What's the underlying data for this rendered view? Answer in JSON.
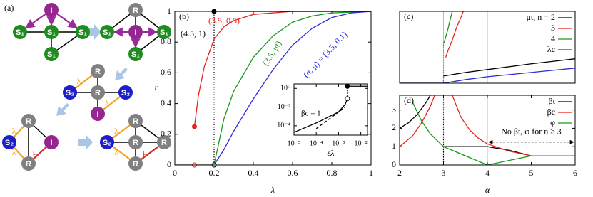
{
  "diagram": {
    "label": "(a)",
    "nodes": [
      "I",
      "S₁",
      "S₁",
      "S₁",
      "S₁",
      "R",
      "S₁",
      "I",
      "S₁",
      "S₁",
      "R",
      "S₂",
      "R",
      "S₂",
      "I",
      "R",
      "S₂",
      "I",
      "R",
      "R",
      "S₂",
      "R",
      "R",
      "R"
    ],
    "edge_labels": [
      "λ",
      "μ"
    ]
  },
  "chart_data": [
    {
      "type": "line",
      "label": "(b)",
      "xlabel": "λ",
      "ylabel": "r",
      "xlim": [
        0,
        1
      ],
      "ylim": [
        0,
        1
      ],
      "xticks": [
        0,
        0.2,
        0.4,
        0.6,
        0.8,
        1
      ],
      "yticks": [
        0,
        0.2,
        0.4,
        0.6,
        0.8,
        1
      ],
      "series": [
        {
          "name": "(3.5, 0.5)",
          "color": "#e8231f",
          "x": [
            0.1,
            0.12,
            0.15,
            0.2,
            0.25,
            0.3,
            0.4,
            0.5,
            0.6,
            0.8,
            1
          ],
          "values": [
            0.25,
            0.45,
            0.64,
            0.82,
            0.9,
            0.94,
            0.98,
            0.99,
            1,
            1,
            1
          ]
        },
        {
          "name": "(3.5, μt)",
          "color": "#179a17",
          "x": [
            0.2,
            0.25,
            0.3,
            0.4,
            0.5,
            0.6,
            0.7,
            0.8,
            1
          ],
          "values": [
            0,
            0.3,
            0.48,
            0.7,
            0.84,
            0.93,
            0.97,
            0.99,
            1
          ]
        },
        {
          "name": "(α, μ) = (3.5, 0.1)",
          "color": "#2b2bdc",
          "x": [
            0.2,
            0.25,
            0.3,
            0.4,
            0.5,
            0.6,
            0.7,
            0.8,
            0.9,
            1
          ],
          "values": [
            0,
            0.1,
            0.22,
            0.43,
            0.62,
            0.78,
            0.89,
            0.96,
            0.99,
            1
          ]
        },
        {
          "name": "(4.5, 1)",
          "color": "#000000",
          "x": [
            0,
            0.2,
            0.2,
            0.2,
            1
          ],
          "values": [
            0,
            0,
            null,
            1,
            1
          ]
        }
      ],
      "markers": [
        {
          "x": 0.2,
          "y": 1,
          "color": "#000000",
          "filled": true
        },
        {
          "x": 0.2,
          "y": 0,
          "color": "#000000",
          "filled": false
        },
        {
          "x": 0.1,
          "y": 0.25,
          "color": "#e8231f",
          "filled": true
        },
        {
          "x": 0.1,
          "y": 0,
          "color": "#e8231f",
          "filled": false
        }
      ],
      "dotted": [
        {
          "x": 0.2,
          "y": [
            0,
            1
          ],
          "color": "#000000"
        }
      ]
    },
    {
      "type": "line",
      "xlabel": "ελ",
      "xlog": true,
      "ylog": true,
      "xlim": [
        1e-05,
        0.02
      ],
      "ylim": [
        1e-05,
        3
      ],
      "xticks": [
        {
          "value": 1e-05,
          "label": "10⁻⁵"
        },
        {
          "value": 0.0001,
          "label": "10⁻⁴"
        },
        {
          "value": 0.001,
          "label": "10⁻³"
        },
        {
          "value": 0.01,
          "label": "10⁻²"
        }
      ],
      "yticks": [
        {
          "value": 0.0001,
          "label": "10⁻⁴"
        },
        {
          "value": 0.01,
          "label": "10⁻²"
        },
        {
          "value": 1,
          "label": "10⁰"
        }
      ],
      "annotation": "βc = 1",
      "series": [
        {
          "color": "#000000",
          "x": [
            1e-05,
            0.0001,
            0.001,
            0.002,
            0.0025
          ],
          "values": [
            2e-05,
            0.0002,
            0.003,
            0.02,
            0.08
          ]
        },
        {
          "color": "#000000",
          "dash": true,
          "x": [
            0.0001,
            0.002
          ],
          "values": [
            5e-05,
            0.01
          ]
        },
        {
          "color": "#000000",
          "x": [
            0.0025,
            0.02
          ],
          "values": [
            1.7,
            1.7
          ]
        }
      ],
      "markers": [
        {
          "x": 0.0025,
          "y": 1.7,
          "color": "#000000",
          "filled": true
        },
        {
          "x": 0.0025,
          "y": 0.08,
          "color": "#000000",
          "filled": false
        }
      ],
      "dotted": [
        {
          "x": 0.0025,
          "y": [
            0.08,
            1.7
          ],
          "color": "#000000"
        }
      ]
    },
    {
      "type": "line",
      "label": "(c)",
      "legend": "upper right",
      "xlim": [
        2,
        6
      ],
      "ylim": [
        0,
        1
      ],
      "vlines": [
        3,
        4
      ],
      "series": [
        {
          "name": "μt, n = 2",
          "color": "#000000",
          "x": [
            2,
            3,
            3,
            3,
            3.5,
            4,
            5,
            6
          ],
          "values": [
            0,
            0,
            null,
            0.1,
            0.15,
            0.19,
            0.27,
            0.34
          ]
        },
        {
          "name": "3",
          "color": "#e8231f",
          "x": [
            3.05,
            3.1,
            3.2,
            3.3,
            3.4,
            3.45
          ],
          "values": [
            0.36,
            0.45,
            0.6,
            0.78,
            0.92,
            1
          ]
        },
        {
          "name": "4",
          "color": "#179a17",
          "x": [
            3,
            3.03,
            3.1,
            3.15,
            3.2
          ],
          "values": [
            0.55,
            0.6,
            0.75,
            0.88,
            1
          ]
        },
        {
          "name": "λc",
          "color": "#2b2bdc",
          "x": [
            2,
            3,
            3.5,
            4,
            5,
            6
          ],
          "values": [
            0,
            0,
            0.05,
            0.09,
            0.15,
            0.21
          ]
        }
      ],
      "dotted": [
        {
          "x": 3,
          "y": [
            0,
            0.55
          ],
          "color": "#179a17"
        },
        {
          "x": 3,
          "y": [
            0,
            0.1
          ],
          "color": "#000000"
        }
      ]
    },
    {
      "type": "line",
      "label": "(d)",
      "xlabel": "α",
      "legend": "upper right",
      "xlim": [
        2,
        6
      ],
      "ylim": [
        0,
        3.8
      ],
      "xticks": [
        2,
        3,
        4,
        5,
        6
      ],
      "yticks": [
        0,
        1,
        2,
        3
      ],
      "vlines": [
        3,
        4
      ],
      "series": [
        {
          "name": "βt",
          "color": "#000000",
          "x": [
            2,
            2.2,
            2.4,
            2.6,
            2.7,
            2.7,
            3,
            4,
            4.5,
            5,
            6
          ],
          "values": [
            2,
            2.3,
            2.75,
            3.4,
            3.8,
            null,
            1,
            1,
            0.8,
            0.5,
            0.5
          ]
        },
        {
          "name": "βc",
          "color": "#e8231f",
          "x": [
            2,
            2.3,
            2.5,
            2.7,
            2.8,
            2.8,
            3.2,
            3.4,
            3.6,
            3.8,
            4,
            4.5,
            5,
            6
          ],
          "values": [
            1,
            1.6,
            2.3,
            3.2,
            3.8,
            null,
            3.8,
            2.6,
            1.9,
            1.45,
            1.15,
            0.75,
            0.5,
            0.5
          ]
        },
        {
          "name": "φ",
          "color": "#179a17",
          "x": [
            2.3,
            2.5,
            2.7,
            3,
            3.5,
            4,
            4.5,
            5,
            6
          ],
          "values": [
            3.4,
            2.4,
            1.7,
            1,
            0.5,
            0,
            0.25,
            0.5,
            0.5
          ]
        }
      ],
      "dotted": [
        {
          "x": 3,
          "y": [
            0,
            3.8
          ],
          "color": "#000000"
        }
      ],
      "annotation": "No βt, φ for n ≥ 3",
      "arrow_x": [
        4,
        6
      ],
      "arrow_y": 1.25
    }
  ]
}
